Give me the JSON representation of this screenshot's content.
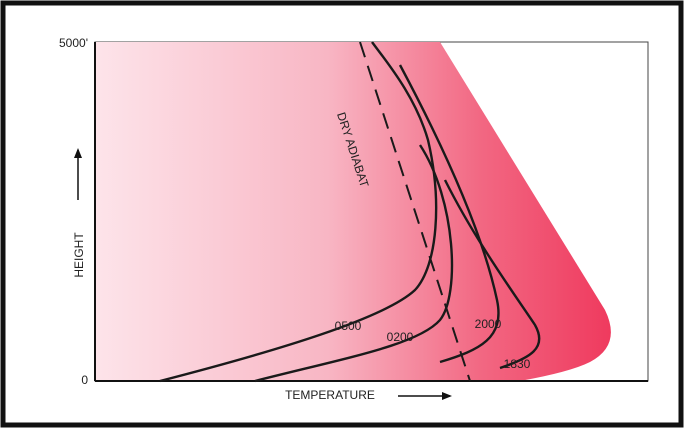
{
  "y_axis": {
    "label": "HEIGHT",
    "ticks": [
      "5000'",
      "0"
    ]
  },
  "x_axis": {
    "label": "TEMPERATURE"
  },
  "reference_line": {
    "label": "DRY ADIABAT"
  },
  "curves": [
    {
      "label": "0500"
    },
    {
      "label": "0200"
    },
    {
      "label": "2000"
    },
    {
      "label": "1830"
    }
  ]
}
